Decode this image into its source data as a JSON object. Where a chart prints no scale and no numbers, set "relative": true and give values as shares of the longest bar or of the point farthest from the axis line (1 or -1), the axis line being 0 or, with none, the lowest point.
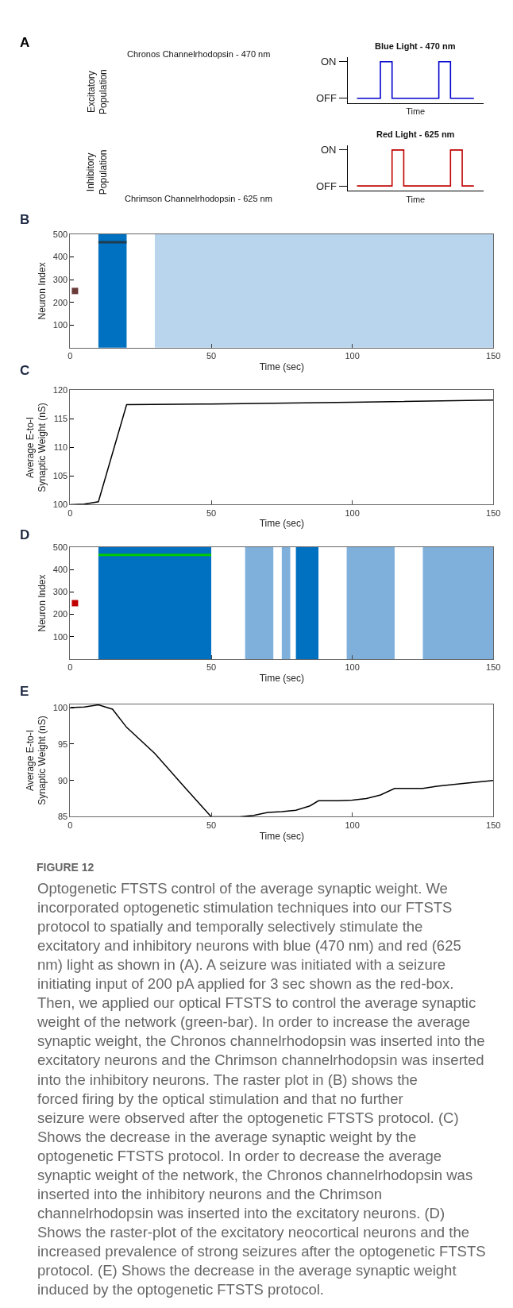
{
  "chart_data": [
    {
      "type": "other",
      "title": "A",
      "annotations": [
        "Chronos Channelrhodopsin - 470 nm",
        "Excitatory\nPopulation",
        "Inhibitory\nPopulation",
        "Chrimson Channelrhodopsin - 625 nm"
      ]
    },
    {
      "type": "step",
      "title": "Blue Light - 470 nm",
      "xlabel": "Time",
      "categories": [
        null,
        null,
        null,
        null,
        null,
        null,
        null,
        null,
        null,
        null,
        null
      ],
      "relative": true,
      "annotations": [
        "ON",
        "OFF"
      ],
      "series": [
        {
          "color": "#0000cc",
          "values": [
            0.12,
            0.12,
            1,
            0.12,
            0.12,
            0.12,
            0.12,
            1,
            0.12,
            0.12,
            0.12
          ]
        }
      ]
    },
    {
      "type": "step",
      "title": "Red Light - 625 nm",
      "xlabel": "Time",
      "categories": [
        null,
        null,
        null,
        null,
        null,
        null,
        null,
        null,
        null,
        null,
        null
      ],
      "relative": true,
      "annotations": [
        "ON",
        "OFF"
      ],
      "series": [
        {
          "color": "#c00000",
          "values": [
            0.12,
            0.12,
            0.12,
            1,
            0.12,
            0.12,
            0.12,
            0.12,
            1,
            0.12,
            0.12
          ]
        }
      ]
    },
    {
      "type": "scatter",
      "title": "B",
      "xlabel": "Time (sec)",
      "ylabel": "Neuron Index",
      "xlim": [
        0,
        150
      ],
      "xticks": [
        0,
        50,
        100,
        150
      ],
      "ylim": [
        0,
        500
      ],
      "yticks": [
        100,
        200,
        300,
        400,
        500
      ],
      "bands": [
        {
          "axis": "x",
          "from": 10,
          "to": 20,
          "color": "#0070c0"
        },
        {
          "axis": "x",
          "from": 30,
          "to": 150,
          "color": "#b9d5ee"
        }
      ],
      "series": [
        {
          "type": "line",
          "color": "#1f3b4d",
          "x": [
            10,
            20
          ],
          "values": [
            465,
            465
          ]
        },
        {
          "type": "scatter",
          "marker": "square",
          "color": "#6b3a3a",
          "x": [
            1.7
          ],
          "values": [
            250
          ]
        }
      ]
    },
    {
      "type": "line",
      "title": "C",
      "xlabel": "Time (sec)",
      "ylabel": "Average E-to-I\nSynaptic Weight (nS)",
      "xlim": [
        0,
        150
      ],
      "xticks": [
        0,
        50,
        100,
        150
      ],
      "ylim": [
        100,
        120
      ],
      "yticks": [
        100,
        105,
        110,
        115,
        120
      ],
      "series": [
        {
          "color": "#000000",
          "x": [
            0,
            5,
            10,
            20,
            50,
            100,
            150
          ],
          "values": [
            100,
            100.1,
            100.5,
            117.5,
            117.6,
            117.9,
            118.3
          ]
        }
      ]
    },
    {
      "type": "scatter",
      "title": "D",
      "xlabel": "Time (sec)",
      "ylabel": "Neuron Index",
      "xlim": [
        0,
        150
      ],
      "xticks": [
        0,
        50,
        100,
        150
      ],
      "ylim": [
        0,
        500
      ],
      "yticks": [
        100,
        200,
        300,
        400,
        500
      ],
      "bands": [
        {
          "axis": "x",
          "from": 10,
          "to": 50,
          "color": "#0070c0"
        },
        {
          "axis": "x",
          "from": 62,
          "to": 72,
          "color": "#7fb0dc"
        },
        {
          "axis": "x",
          "from": 75,
          "to": 78,
          "color": "#7fb0dc"
        },
        {
          "axis": "x",
          "from": 80,
          "to": 88,
          "color": "#0070c0"
        },
        {
          "axis": "x",
          "from": 98,
          "to": 115,
          "color": "#7fb0dc"
        },
        {
          "axis": "x",
          "from": 125,
          "to": 150,
          "color": "#7fb0dc"
        }
      ],
      "series": [
        {
          "type": "line",
          "color": "#00cc00",
          "x": [
            10,
            50
          ],
          "values": [
            465,
            465
          ]
        },
        {
          "type": "scatter",
          "marker": "square",
          "color": "#c00000",
          "x": [
            1.7
          ],
          "values": [
            250
          ]
        }
      ]
    },
    {
      "type": "line",
      "title": "E",
      "xlabel": "Time (sec)",
      "ylabel": "Average E-to-I\nSynaptic Weight (nS)",
      "xlim": [
        0,
        150
      ],
      "xticks": [
        0,
        50,
        100,
        150
      ],
      "ylim": [
        85,
        100.5
      ],
      "yticks": [
        85,
        90,
        95,
        100
      ],
      "series": [
        {
          "color": "#000000",
          "x": [
            0,
            5,
            10,
            15,
            20,
            30,
            40,
            50,
            60,
            65,
            70,
            75,
            80,
            85,
            88,
            95,
            100,
            105,
            110,
            115,
            125,
            130,
            140,
            150
          ],
          "values": [
            100,
            100.1,
            100.4,
            99.8,
            97.3,
            93.7,
            89.3,
            85,
            85,
            85.2,
            85.6,
            85.7,
            85.9,
            86.5,
            87.2,
            87.2,
            87.3,
            87.5,
            88,
            88.9,
            88.9,
            89.2,
            89.6,
            90
          ]
        }
      ]
    },
    {
      "type": "other",
      "title": "FIGURE 12",
      "annotations": [
        "Optogenetic FTSTS control of the average synaptic weight. We incorporated optogenetic stimulation techniques into our FTSTS protocol to spatially and temporally selectively stimulate the excitatory and inhibitory neurons with blue (470 nm) and red (625 nm) light as shown in (A). A seizure was initiated with a seizure initiating input of 200 pA applied for 3 sec shown as the red-box. Then, we applied our optical FTSTS to control the average synaptic weight of the network (green-bar). In order to increase the average synaptic weight, the Chronos channelrhodopsin was inserted into the excitatory neurons and the Chrimson channelrhodopsin was inserted into the inhibitory neurons. The raster plot in (B) shows the forced firing by the optical stimulation and that no further seizure were observed after the optogenetic FTSTS protocol. (C) Shows the decrease in the average synaptic weight by the optogenetic FTSTS protocol. In order to decrease the average synaptic weight of the network, the Chronos channelrhodopsin was inserted into the inhibitory neurons and the Chrimson channelrhodopsin was inserted into the excitatory neurons. (D) Shows the raster-plot of the excitatory neocortical neurons and the increased prevalence of strong seizures after the optogenetic FTSTS protocol. (E) Shows the decrease in the average synaptic weight induced by the optogenetic FTSTS protocol."
      ]
    }
  ]
}
